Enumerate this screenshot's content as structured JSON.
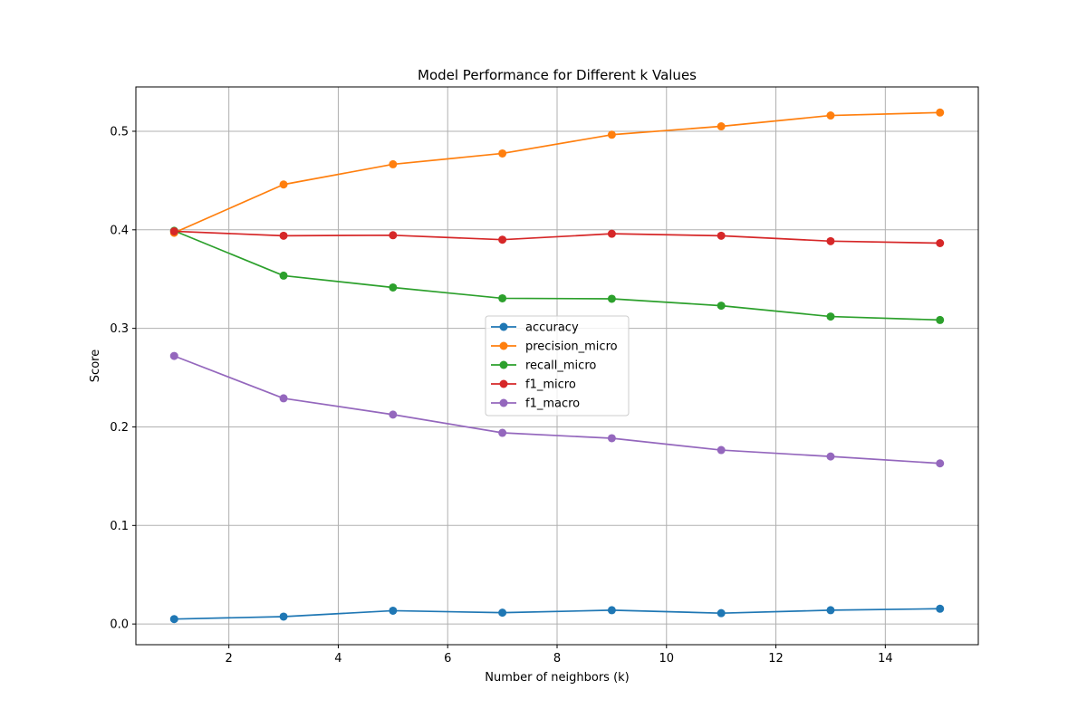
{
  "chart_data": {
    "type": "line",
    "title": "Model Performance for Different k Values",
    "xlabel": "Number of neighbors (k)",
    "ylabel": "Score",
    "x": [
      1,
      3,
      5,
      7,
      9,
      11,
      13,
      15
    ],
    "xlim": [
      0.3,
      15.7
    ],
    "ylim": [
      -0.021,
      0.545
    ],
    "xticks": [
      2,
      4,
      6,
      8,
      10,
      12,
      14
    ],
    "yticks": [
      0.0,
      0.1,
      0.2,
      0.3,
      0.4,
      0.5
    ],
    "ytick_labels": [
      "0.0",
      "0.1",
      "0.2",
      "0.3",
      "0.4",
      "0.5"
    ],
    "grid": true,
    "legend_position": "center",
    "series": [
      {
        "name": "accuracy",
        "color": "#1f77b4",
        "values": [
          0.005,
          0.0075,
          0.0135,
          0.0115,
          0.014,
          0.011,
          0.014,
          0.0155
        ]
      },
      {
        "name": "precision_micro",
        "color": "#ff7f0e",
        "values": [
          0.397,
          0.446,
          0.4665,
          0.4775,
          0.4965,
          0.505,
          0.516,
          0.519
        ]
      },
      {
        "name": "recall_micro",
        "color": "#2ca02c",
        "values": [
          0.399,
          0.3535,
          0.3415,
          0.3305,
          0.33,
          0.323,
          0.312,
          0.3085
        ]
      },
      {
        "name": "f1_micro",
        "color": "#d62728",
        "values": [
          0.3985,
          0.394,
          0.3945,
          0.39,
          0.396,
          0.394,
          0.3885,
          0.3865
        ]
      },
      {
        "name": "f1_macro",
        "color": "#9467bd",
        "values": [
          0.272,
          0.229,
          0.2125,
          0.194,
          0.1885,
          0.1765,
          0.17,
          0.163
        ]
      }
    ]
  }
}
